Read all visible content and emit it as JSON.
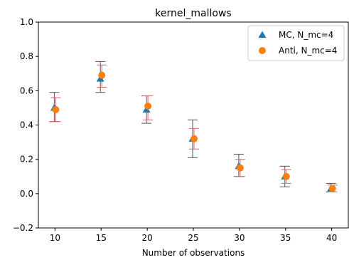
{
  "chart_data": {
    "type": "scatter",
    "title": "kernel_mallows",
    "xlabel": "Number of observations",
    "ylabel": "",
    "x": [
      10,
      15,
      20,
      25,
      30,
      35,
      40
    ],
    "xticks": [
      10,
      15,
      20,
      25,
      30,
      35,
      40
    ],
    "yticks": [
      -0.2,
      0.0,
      0.2,
      0.4,
      0.6,
      0.8,
      1.0
    ],
    "xlim": [
      8.2,
      41.8
    ],
    "ylim": [
      -0.2,
      1.0
    ],
    "grid": false,
    "legend_position": "top-right",
    "series": [
      {
        "name": "MC, N_mc=4",
        "marker": "triangle",
        "color": "#1f77b4",
        "errorbar_color": "#555555",
        "values": [
          0.5,
          0.67,
          0.49,
          0.32,
          0.16,
          0.1,
          0.03
        ],
        "err_low": [
          0.42,
          0.59,
          0.41,
          0.21,
          0.1,
          0.04,
          0.01
        ],
        "err_high": [
          0.59,
          0.77,
          0.57,
          0.43,
          0.23,
          0.16,
          0.06
        ]
      },
      {
        "name": "Anti, N_mc=4",
        "marker": "circle",
        "color": "#ff7f0e",
        "errorbar_color": "#e06666",
        "values": [
          0.49,
          0.69,
          0.51,
          0.32,
          0.15,
          0.1,
          0.03
        ],
        "err_low": [
          0.42,
          0.62,
          0.43,
          0.26,
          0.1,
          0.06,
          0.01
        ],
        "err_high": [
          0.56,
          0.75,
          0.57,
          0.38,
          0.2,
          0.14,
          0.05
        ]
      }
    ]
  }
}
